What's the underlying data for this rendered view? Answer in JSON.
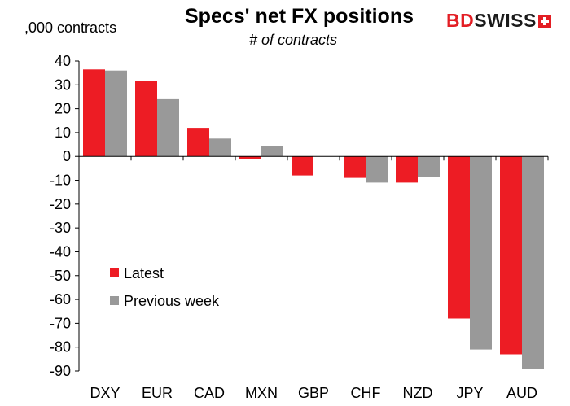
{
  "title": "Specs' net FX positions",
  "subtitle": "# of contracts",
  "unit_label": ",000 contracts",
  "logo": {
    "part1": "BD",
    "part2": "SWISS"
  },
  "colors": {
    "latest": "#ed1c24",
    "previous": "#999999",
    "logo_red": "#e31e24"
  },
  "chart_data": {
    "type": "bar",
    "categories": [
      "DXY",
      "EUR",
      "CAD",
      "MXN",
      "GBP",
      "CHF",
      "NZD",
      "JPY",
      "AUD"
    ],
    "series": [
      {
        "name": "Latest",
        "values": [
          36.5,
          31.5,
          12.0,
          -1.0,
          -8.0,
          -9.0,
          -11.0,
          -68.0,
          -83.0
        ]
      },
      {
        "name": "Previous week",
        "values": [
          36.0,
          24.0,
          7.5,
          4.5,
          0.0,
          -11.0,
          -8.5,
          -81.0,
          -89.0
        ]
      }
    ],
    "ylim": [
      -90,
      40
    ],
    "yticks": [
      "40",
      "30",
      "20",
      "10",
      "0",
      "-10",
      "-20",
      "-30",
      "-40",
      "-50",
      "-60",
      "-70",
      "-80",
      "-90"
    ],
    "grid": false,
    "legend_position": "lower-left"
  }
}
